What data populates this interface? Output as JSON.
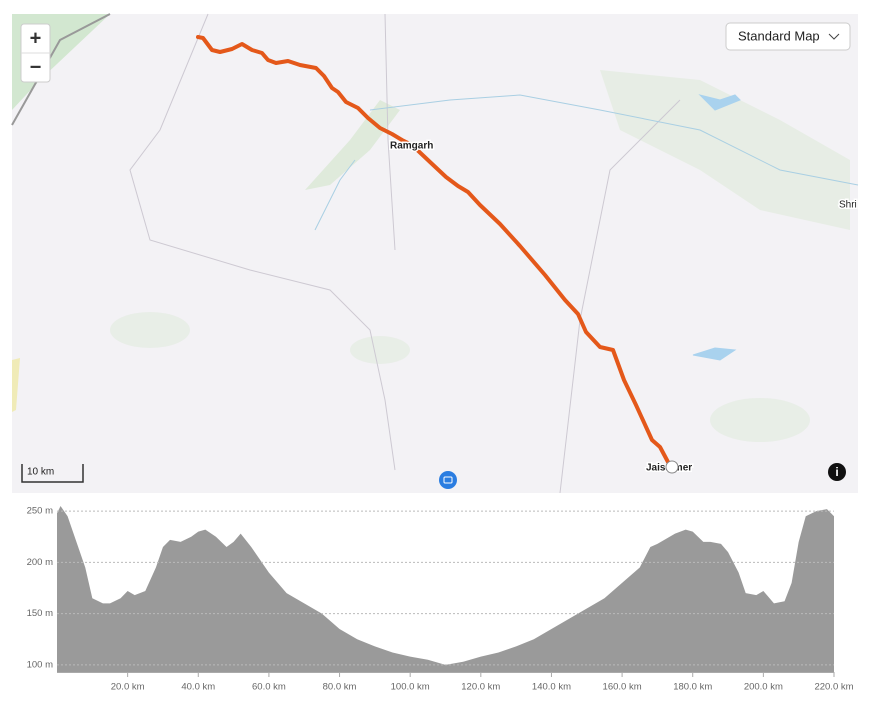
{
  "map": {
    "zoom_in": "+",
    "zoom_out": "−",
    "layer_button": "Standard Map",
    "scale": "10 km",
    "places": [
      "Ramgarh",
      "Jaisalmer",
      "Shri"
    ]
  },
  "chart_data": {
    "type": "area",
    "color": "#9a9a9a",
    "x": [
      0,
      1,
      3,
      5,
      8,
      10,
      13,
      15,
      18,
      20,
      22,
      25,
      28,
      30,
      32,
      35,
      38,
      40,
      42,
      45,
      48,
      50,
      52,
      55,
      58,
      60,
      65,
      70,
      75,
      80,
      85,
      90,
      95,
      100,
      105,
      110,
      115,
      120,
      125,
      130,
      135,
      140,
      145,
      150,
      155,
      160,
      165,
      168,
      170,
      175,
      178,
      180,
      183,
      185,
      188,
      190,
      193,
      195,
      198,
      200,
      203,
      206,
      208,
      210,
      212,
      215,
      218,
      220
    ],
    "values": [
      248,
      255,
      245,
      225,
      195,
      165,
      160,
      160,
      165,
      172,
      168,
      172,
      195,
      215,
      222,
      220,
      225,
      230,
      232,
      225,
      215,
      220,
      228,
      215,
      200,
      190,
      170,
      160,
      150,
      135,
      125,
      118,
      112,
      108,
      105,
      100,
      103,
      108,
      112,
      118,
      125,
      135,
      145,
      155,
      165,
      180,
      195,
      215,
      218,
      228,
      232,
      230,
      220,
      220,
      218,
      210,
      190,
      170,
      168,
      172,
      160,
      162,
      180,
      220,
      245,
      250,
      252,
      245
    ],
    "xlim": [
      0,
      220
    ],
    "ylim": [
      93,
      256
    ],
    "xticks": [
      {
        "value": 20,
        "label": "20.0 km"
      },
      {
        "value": 40,
        "label": "40.0 km"
      },
      {
        "value": 60,
        "label": "60.0 km"
      },
      {
        "value": 80,
        "label": "80.0 km"
      },
      {
        "value": 100,
        "label": "100.0 km"
      },
      {
        "value": 120,
        "label": "120.0 km"
      },
      {
        "value": 140,
        "label": "140.0 km"
      },
      {
        "value": 160,
        "label": "160.0 km"
      },
      {
        "value": 180,
        "label": "180.0 km"
      },
      {
        "value": 200,
        "label": "200.0 km"
      },
      {
        "value": 220,
        "label": "220.0 km"
      }
    ],
    "yticks": [
      {
        "value": 100,
        "label": "100 m"
      },
      {
        "value": 150,
        "label": "150 m"
      },
      {
        "value": 200,
        "label": "200 m"
      },
      {
        "value": 250,
        "label": "250 m"
      }
    ],
    "grid": true
  }
}
